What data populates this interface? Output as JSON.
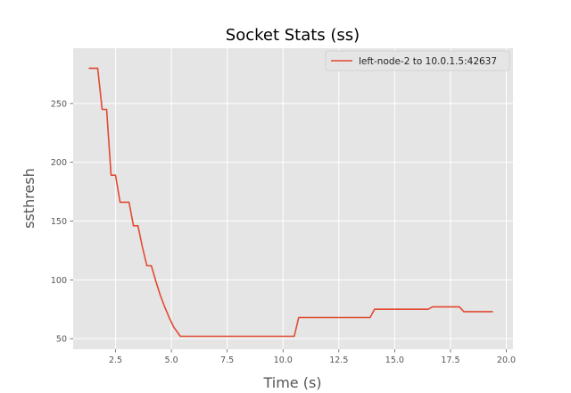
{
  "chart_data": {
    "type": "line",
    "title": "Socket Stats (ss)",
    "xlabel": "Time (s)",
    "ylabel": "ssthresh",
    "xlim": [
      0.6,
      20.3
    ],
    "ylim": [
      41,
      297
    ],
    "xticks": [
      2.5,
      5.0,
      7.5,
      10.0,
      12.5,
      15.0,
      17.5,
      20.0
    ],
    "yticks": [
      50,
      100,
      150,
      200,
      250
    ],
    "grid": true,
    "legend_position": "top-right",
    "series": [
      {
        "name": "left-node-2 to 10.0.1.5:42637",
        "color": "#E24A33",
        "x": [
          1.3,
          1.7,
          1.9,
          2.1,
          2.3,
          2.5,
          2.7,
          3.1,
          3.3,
          3.5,
          3.7,
          3.9,
          4.1,
          4.3,
          4.5,
          4.7,
          4.9,
          5.1,
          5.4,
          10.5,
          10.7,
          13.9,
          14.1,
          16.5,
          16.7,
          17.9,
          18.1,
          19.4
        ],
        "y": [
          280,
          280,
          245,
          245,
          189,
          189,
          166,
          166,
          146,
          146,
          128,
          112,
          112,
          99,
          87,
          77,
          68,
          60,
          52,
          52,
          68,
          68,
          75,
          75,
          77,
          77,
          73,
          73
        ]
      }
    ]
  }
}
